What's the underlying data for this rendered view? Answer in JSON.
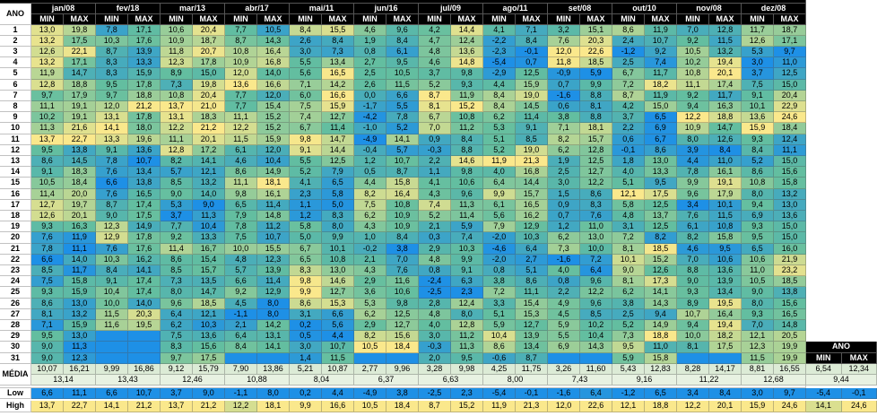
{
  "header": {
    "corner": "ANO",
    "months": [
      "jan/08",
      "fev/18",
      "mar/13",
      "abr/17",
      "mai/11",
      "jun/16",
      "jul/09",
      "ago/11",
      "set/08",
      "out/10",
      "nov/08",
      "dez/08"
    ],
    "min": "MIN",
    "max": "MAX"
  },
  "days": [
    {
      "label": "1",
      "values": [
        "13,0",
        "19,8",
        "7,8",
        "17,1",
        "10,6",
        "20,4",
        "7,7",
        "10,5",
        "8,4",
        "15,5",
        "4,6",
        "9,6",
        "4,2",
        "14,4",
        "4,1",
        "7,1",
        "3,2",
        "15,1",
        "8,6",
        "11,9",
        "7,0",
        "12,8",
        "11,7",
        "18,7"
      ]
    },
    {
      "label": "2",
      "values": [
        "13,2",
        "17,5",
        "10,3",
        "17,6",
        "10,9",
        "18,7",
        "8,7",
        "14,3",
        "2,6",
        "8,4",
        "1,9",
        "8,4",
        "4,7",
        "12,4",
        "-2,2",
        "8,4",
        "7,6",
        "20,3",
        "2,4",
        "10,7",
        "9,2",
        "11,5",
        "12,6",
        "17,1"
      ]
    },
    {
      "label": "3",
      "values": [
        "12,6",
        "22,1",
        "8,7",
        "13,9",
        "11,8",
        "20,7",
        "10,8",
        "16,4",
        "3,0",
        "7,3",
        "0,8",
        "6,1",
        "4,8",
        "13,6",
        "-2,3",
        "-0,1",
        "12,0",
        "22,6",
        "-1,2",
        "9,2",
        "10,5",
        "13,2",
        "5,3",
        "9,7"
      ]
    },
    {
      "label": "4",
      "values": [
        "13,2",
        "17,1",
        "8,3",
        "13,3",
        "12,3",
        "17,8",
        "10,9",
        "16,8",
        "5,5",
        "13,4",
        "2,7",
        "9,5",
        "4,6",
        "14,8",
        "-5,4",
        "0,7",
        "11,8",
        "18,5",
        "2,5",
        "7,4",
        "10,2",
        "19,4",
        "3,0",
        "11,0"
      ]
    },
    {
      "label": "5",
      "values": [
        "11,9",
        "14,7",
        "8,3",
        "15,9",
        "8,9",
        "15,0",
        "12,0",
        "14,0",
        "5,6",
        "16,5",
        "2,5",
        "10,5",
        "3,7",
        "9,8",
        "-2,9",
        "12,5",
        "-0,9",
        "5,9",
        "6,7",
        "11,7",
        "10,8",
        "20,1",
        "3,7",
        "12,5"
      ]
    },
    {
      "label": "6",
      "values": [
        "12,8",
        "18,8",
        "9,5",
        "17,8",
        "7,3",
        "19,8",
        "13,6",
        "16,6",
        "7,1",
        "14,2",
        "2,6",
        "11,5",
        "5,2",
        "9,3",
        "4,4",
        "15,9",
        "0,7",
        "9,9",
        "7,2",
        "18,2",
        "11,1",
        "17,4",
        "7,5",
        "15,0"
      ]
    },
    {
      "label": "7",
      "values": [
        "9,7",
        "17,9",
        "9,7",
        "18,8",
        "10,8",
        "20,4",
        "7,7",
        "12,0",
        "6,0",
        "16,6",
        "0,0",
        "6,6",
        "8,7",
        "11,9",
        "8,4",
        "19,0",
        "-1,6",
        "8,8",
        "8,7",
        "11,9",
        "9,2",
        "11,7",
        "9,1",
        "20,4"
      ]
    },
    {
      "label": "8",
      "values": [
        "11,1",
        "19,1",
        "12,0",
        "21,2",
        "13,7",
        "21,0",
        "7,7",
        "15,4",
        "7,5",
        "15,9",
        "-1,7",
        "5,5",
        "8,1",
        "15,2",
        "8,4",
        "14,5",
        "0,6",
        "8,1",
        "4,2",
        "15,0",
        "9,4",
        "16,3",
        "10,1",
        "22,9"
      ]
    },
    {
      "label": "9",
      "values": [
        "10,2",
        "19,1",
        "13,1",
        "17,8",
        "13,1",
        "18,3",
        "11,1",
        "15,2",
        "7,4",
        "12,7",
        "-4,2",
        "7,8",
        "6,7",
        "10,8",
        "6,2",
        "11,4",
        "3,8",
        "8,8",
        "3,7",
        "6,5",
        "12,2",
        "18,8",
        "13,6",
        "24,6"
      ]
    },
    {
      "label": "10",
      "values": [
        "11,3",
        "21,6",
        "14,1",
        "18,0",
        "12,2",
        "21,2",
        "12,2",
        "15,2",
        "6,7",
        "11,4",
        "-1,0",
        "5,2",
        "7,0",
        "11,2",
        "5,3",
        "9,1",
        "7,1",
        "18,1",
        "2,2",
        "6,9",
        "10,9",
        "14,7",
        "15,9",
        "18,4"
      ]
    },
    {
      "label": "11",
      "values": [
        "13,7",
        "22,7",
        "13,3",
        "19,6",
        "11,1",
        "20,1",
        "11,5",
        "15,9",
        "9,8",
        "14,7",
        "-4,9",
        "14,1",
        "0,9",
        "8,4",
        "5,1",
        "8,5",
        "8,2",
        "15,7",
        "0,6",
        "6,7",
        "8,0",
        "12,6",
        "9,3",
        "12,4"
      ]
    },
    {
      "label": "12",
      "values": [
        "9,5",
        "13,8",
        "9,1",
        "13,6",
        "12,8",
        "17,2",
        "6,1",
        "12,0",
        "9,1",
        "14,4",
        "-0,4",
        "5,7",
        "-0,3",
        "8,8",
        "5,2",
        "19,0",
        "6,2",
        "12,8",
        "-0,1",
        "8,6",
        "3,9",
        "8,4",
        "8,4",
        "11,1"
      ]
    },
    {
      "label": "13",
      "values": [
        "8,6",
        "14,5",
        "7,8",
        "10,7",
        "8,2",
        "14,1",
        "4,6",
        "10,4",
        "5,5",
        "12,5",
        "1,2",
        "10,7",
        "2,2",
        "14,6",
        "11,9",
        "21,3",
        "1,9",
        "12,5",
        "1,8",
        "13,0",
        "4,4",
        "11,0",
        "5,2",
        "15,0"
      ]
    },
    {
      "label": "14",
      "values": [
        "9,1",
        "18,3",
        "7,6",
        "13,4",
        "5,7",
        "12,1",
        "8,6",
        "14,9",
        "5,2",
        "7,9",
        "0,5",
        "8,7",
        "1,1",
        "9,8",
        "4,0",
        "16,8",
        "2,5",
        "12,7",
        "4,0",
        "13,3",
        "7,8",
        "16,1",
        "8,6",
        "15,6"
      ]
    },
    {
      "label": "15",
      "values": [
        "10,5",
        "18,4",
        "6,6",
        "13,8",
        "8,5",
        "13,2",
        "11,1",
        "18,1",
        "4,1",
        "6,5",
        "4,4",
        "15,8",
        "4,1",
        "10,6",
        "6,4",
        "14,4",
        "3,0",
        "12,2",
        "5,1",
        "9,5",
        "9,9",
        "19,1",
        "10,8",
        "15,8"
      ]
    },
    {
      "label": "16",
      "values": [
        "11,4",
        "20,0",
        "7,6",
        "16,5",
        "9,0",
        "14,0",
        "9,8",
        "16,1",
        "2,3",
        "5,8",
        "8,2",
        "16,4",
        "4,3",
        "9,6",
        "9,9",
        "15,7",
        "1,5",
        "8,6",
        "12,1",
        "17,5",
        "9,6",
        "17,9",
        "8,0",
        "13,2"
      ]
    },
    {
      "label": "17",
      "values": [
        "12,7",
        "19,7",
        "8,7",
        "17,4",
        "5,3",
        "9,0",
        "6,5",
        "11,4",
        "1,1",
        "5,0",
        "7,5",
        "10,8",
        "7,4",
        "11,3",
        "6,1",
        "16,5",
        "0,9",
        "8,3",
        "5,8",
        "12,5",
        "3,4",
        "10,1",
        "9,4",
        "13,0"
      ]
    },
    {
      "label": "18",
      "values": [
        "12,6",
        "20,1",
        "9,0",
        "17,5",
        "3,7",
        "11,3",
        "7,9",
        "14,8",
        "1,2",
        "8,3",
        "6,2",
        "10,9",
        "5,2",
        "11,4",
        "5,6",
        "16,2",
        "0,7",
        "7,6",
        "4,8",
        "13,7",
        "7,6",
        "11,5",
        "6,9",
        "13,6"
      ]
    },
    {
      "label": "19",
      "values": [
        "9,3",
        "16,3",
        "12,3",
        "14,9",
        "7,7",
        "10,4",
        "7,8",
        "11,2",
        "5,8",
        "8,0",
        "4,3",
        "10,9",
        "2,1",
        "5,9",
        "7,9",
        "12,9",
        "1,2",
        "11,0",
        "3,1",
        "12,5",
        "6,1",
        "10,8",
        "9,3",
        "15,0"
      ]
    },
    {
      "label": "20",
      "values": [
        "7,6",
        "11,9",
        "12,9",
        "17,8",
        "9,2",
        "13,3",
        "7,5",
        "10,7",
        "5,0",
        "9,9",
        "1,0",
        "8,4",
        "0,3",
        "7,4",
        "-2,0",
        "10,3",
        "6,2",
        "13,0",
        "7,2",
        "8,2",
        "8,2",
        "15,8",
        "9,5",
        "15,0"
      ]
    },
    {
      "label": "21",
      "values": [
        "7,8",
        "11,1",
        "7,6",
        "17,6",
        "11,4",
        "16,7",
        "10,0",
        "15,5",
        "6,7",
        "10,1",
        "-0,2",
        "3,8",
        "2,9",
        "10,3",
        "-4,6",
        "6,4",
        "7,3",
        "10,0",
        "8,1",
        "18,5",
        "4,6",
        "9,5",
        "6,5",
        "16,0"
      ]
    },
    {
      "label": "22",
      "values": [
        "6,6",
        "14,0",
        "10,3",
        "16,2",
        "8,6",
        "15,4",
        "4,8",
        "12,3",
        "6,5",
        "10,8",
        "2,1",
        "7,0",
        "4,8",
        "9,9",
        "-2,0",
        "2,7",
        "-1,6",
        "7,2",
        "10,1",
        "15,2",
        "7,0",
        "10,6",
        "10,6",
        "21,9"
      ]
    },
    {
      "label": "23",
      "values": [
        "8,5",
        "11,7",
        "8,4",
        "14,1",
        "8,5",
        "15,7",
        "5,7",
        "13,9",
        "8,3",
        "13,0",
        "4,3",
        "7,6",
        "0,8",
        "9,1",
        "0,8",
        "5,1",
        "4,0",
        "6,4",
        "9,0",
        "12,6",
        "8,8",
        "13,6",
        "11,0",
        "23,2"
      ]
    },
    {
      "label": "24",
      "values": [
        "7,5",
        "15,8",
        "9,1",
        "17,4",
        "7,3",
        "13,5",
        "6,6",
        "11,4",
        "9,8",
        "14,6",
        "2,9",
        "11,6",
        "-2,4",
        "6,3",
        "3,8",
        "8,6",
        "0,8",
        "9,6",
        "8,1",
        "17,3",
        "9,0",
        "13,9",
        "10,5",
        "18,5"
      ]
    },
    {
      "label": "25",
      "values": [
        "9,3",
        "15,9",
        "10,4",
        "17,4",
        "8,0",
        "14,7",
        "9,2",
        "12,9",
        "9,9",
        "12,7",
        "3,6",
        "10,6",
        "-2,5",
        "2,3",
        "7,2",
        "11,1",
        "2,2",
        "12,2",
        "6,2",
        "14,1",
        "9,3",
        "13,4",
        "9,0",
        "13,8"
      ]
    },
    {
      "label": "26",
      "values": [
        "8,6",
        "13,0",
        "10,0",
        "14,0",
        "9,6",
        "18,5",
        "4,5",
        "8,0",
        "8,6",
        "15,3",
        "5,3",
        "9,8",
        "2,8",
        "12,4",
        "3,3",
        "15,4",
        "4,9",
        "9,6",
        "3,8",
        "14,3",
        "8,9",
        "19,5",
        "8,0",
        "15,6"
      ]
    },
    {
      "label": "27",
      "values": [
        "8,1",
        "13,2",
        "11,5",
        "20,3",
        "6,4",
        "12,1",
        "-1,1",
        "8,0",
        "3,1",
        "6,6",
        "6,2",
        "12,5",
        "4,8",
        "8,0",
        "5,1",
        "15,3",
        "4,5",
        "8,5",
        "2,5",
        "9,4",
        "10,7",
        "16,4",
        "9,3",
        "16,5"
      ]
    },
    {
      "label": "28",
      "values": [
        "7,1",
        "15,9",
        "11,6",
        "19,5",
        "6,2",
        "10,3",
        "2,1",
        "14,2",
        "0,2",
        "5,6",
        "2,9",
        "12,7",
        "4,0",
        "12,8",
        "5,9",
        "12,7",
        "5,9",
        "10,2",
        "5,2",
        "14,9",
        "9,4",
        "19,4",
        "7,0",
        "14,8"
      ]
    },
    {
      "label": "29",
      "values": [
        "9,5",
        "13,0",
        null,
        null,
        "7,5",
        "13,6",
        "6,4",
        "13,1",
        "0,5",
        "4,4",
        "8,2",
        "15,6",
        "3,0",
        "11,2",
        "10,4",
        "13,9",
        "5,5",
        "10,4",
        "7,3",
        "18,8",
        "10,0",
        "18,2",
        "12,1",
        "20,5"
      ]
    },
    {
      "label": "30",
      "values": [
        "9,0",
        "11,3",
        null,
        null,
        "8,3",
        "15,6",
        "8,4",
        "14,1",
        "3,0",
        "10,7",
        "10,5",
        "18,4",
        "-0,3",
        "11,3",
        "8,6",
        "13,4",
        "6,9",
        "14,3",
        "9,5",
        "11,0",
        "8,1",
        "17,5",
        "12,3",
        "19,9"
      ]
    },
    {
      "label": "31",
      "values": [
        "9,0",
        "12,3",
        null,
        null,
        "9,7",
        "17,5",
        null,
        null,
        "1,4",
        "11,5",
        null,
        null,
        "2,0",
        "9,5",
        "-0,6",
        "8,7",
        null,
        null,
        "5,9",
        "15,8",
        null,
        null,
        "11,5",
        "19,9"
      ]
    }
  ],
  "summary": {
    "media_label": "MÉDIA",
    "media": [
      "10,07",
      "16,21",
      "9,99",
      "16,86",
      "9,12",
      "15,79",
      "7,90",
      "13,86",
      "5,21",
      "10,87",
      "2,77",
      "9,96",
      "3,28",
      "9,98",
      "4,25",
      "11,75",
      "3,26",
      "11,60",
      "5,43",
      "12,83",
      "8,28",
      "14,17",
      "8,81",
      "16,55"
    ],
    "media_combined": [
      "13,14",
      "13,43",
      "12,46",
      "10,88",
      "8,04",
      "6,37",
      "6,63",
      "8,00",
      "7,43",
      "9,16",
      "11,22",
      "12,68"
    ],
    "low_label": "Low",
    "low": [
      "6,6",
      "11,1",
      "6,6",
      "10,7",
      "3,7",
      "9,0",
      "-1,1",
      "8,0",
      "0,2",
      "4,4",
      "-4,9",
      "3,8",
      "-2,5",
      "2,3",
      "-5,4",
      "-0,1",
      "-1,6",
      "6,4",
      "-1,2",
      "6,5",
      "3,4",
      "8,4",
      "3,0",
      "9,7"
    ],
    "high_label": "High",
    "high": [
      "13,7",
      "22,7",
      "14,1",
      "21,2",
      "13,7",
      "21,2",
      "12,2",
      "18,1",
      "9,9",
      "16,6",
      "10,5",
      "18,4",
      "8,7",
      "15,2",
      "11,9",
      "21,3",
      "12,0",
      "22,6",
      "12,1",
      "18,8",
      "12,2",
      "20,1",
      "15,9",
      "24,6"
    ]
  },
  "year": {
    "title": "ANO",
    "min": "MIN",
    "max": "MAX",
    "media": [
      "6,54",
      "12,34"
    ],
    "media_combined": "9,44",
    "low": [
      "-5,4",
      "-0,1"
    ],
    "high": [
      "14,1",
      "24,6"
    ]
  }
}
